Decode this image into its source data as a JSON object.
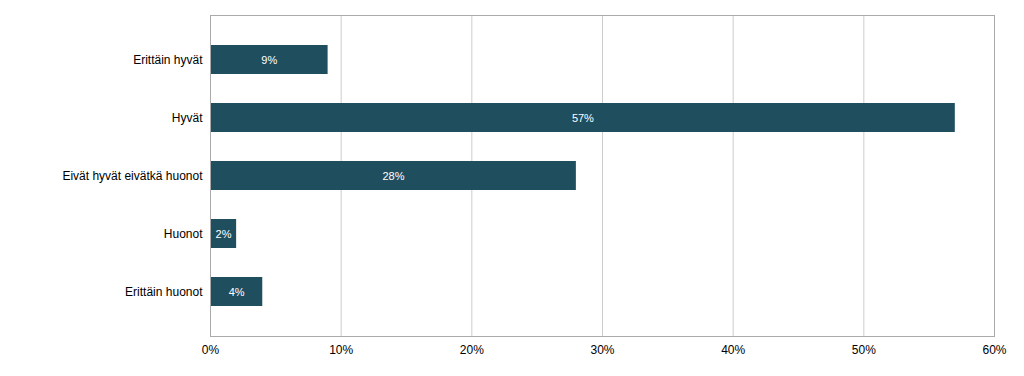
{
  "chart_data": {
    "type": "bar",
    "orientation": "horizontal",
    "categories": [
      "Erittäin hyvät",
      "Hyvät",
      "Eivät hyvät eivätkä huonot",
      "Huonot",
      "Erittäin huonot"
    ],
    "values": [
      9,
      57,
      28,
      2,
      4
    ],
    "value_labels": [
      "9%",
      "57%",
      "28%",
      "2%",
      "4%"
    ],
    "data_labels": true,
    "color": "#1f4e5f",
    "xlim": [
      0,
      60
    ],
    "xticks": [
      {
        "value": 0,
        "label": "0%"
      },
      {
        "value": 10,
        "label": "10%"
      },
      {
        "value": 20,
        "label": "20%"
      },
      {
        "value": 30,
        "label": "30%"
      },
      {
        "value": 40,
        "label": "40%"
      },
      {
        "value": 50,
        "label": "50%"
      },
      {
        "value": 60,
        "label": "60%"
      }
    ],
    "grid": true
  }
}
